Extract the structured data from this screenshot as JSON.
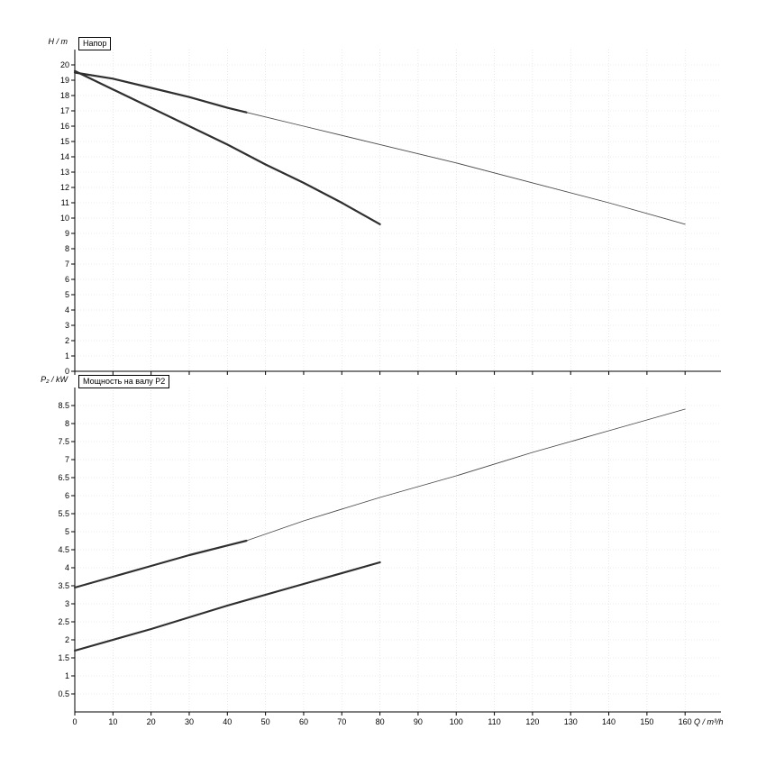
{
  "window": {
    "background": "#ffffff"
  },
  "x_axis": {
    "label": "Q / m³/h",
    "ticks": [
      0,
      10,
      20,
      30,
      40,
      50,
      60,
      70,
      80,
      90,
      100,
      110,
      120,
      130,
      140,
      150,
      160
    ]
  },
  "chart_data": [
    {
      "type": "line",
      "title": "Напор",
      "ylabel": "H / m",
      "xlabel": "Q / m³/h",
      "xlim": [
        0,
        169
      ],
      "ylim": [
        0,
        21
      ],
      "grid": true,
      "legend": "none",
      "yticks": [
        0,
        1,
        2,
        3,
        4,
        5,
        6,
        7,
        8,
        9,
        10,
        11,
        12,
        13,
        14,
        15,
        16,
        17,
        18,
        19,
        20
      ],
      "series": [
        {
          "name": "head-curve-pump1-duty",
          "stroke_width": 2.2,
          "color": "#2f2f2f",
          "points": [
            [
              0,
              19.5
            ],
            [
              10,
              19.1
            ],
            [
              20,
              18.5
            ],
            [
              30,
              17.9
            ],
            [
              40,
              17.2
            ],
            [
              45,
              16.9
            ]
          ]
        },
        {
          "name": "head-curve-pump1-extension",
          "stroke_width": 0.9,
          "color": "#4a4a4a",
          "points": [
            [
              45,
              16.9
            ],
            [
              60,
              16.0
            ],
            [
              80,
              14.8
            ],
            [
              100,
              13.6
            ],
            [
              120,
              12.3
            ],
            [
              140,
              11.0
            ],
            [
              160,
              9.6
            ]
          ]
        },
        {
          "name": "head-curve-pump2-duty",
          "stroke_width": 2.2,
          "color": "#2f2f2f",
          "points": [
            [
              0,
              19.6
            ],
            [
              10,
              18.4
            ],
            [
              20,
              17.2
            ],
            [
              30,
              16.0
            ],
            [
              40,
              14.8
            ],
            [
              50,
              13.5
            ],
            [
              60,
              12.3
            ],
            [
              70,
              11.0
            ],
            [
              80,
              9.6
            ]
          ]
        }
      ]
    },
    {
      "type": "line",
      "title": "Мощность на валу P2",
      "ylabel": "P₂ / kW",
      "xlabel": "Q / m³/h",
      "xlim": [
        0,
        169
      ],
      "ylim": [
        0,
        9
      ],
      "grid": true,
      "legend": "none",
      "yticks": [
        0.5,
        1,
        1.5,
        2,
        2.5,
        3,
        3.5,
        4,
        4.5,
        5,
        5.5,
        6,
        6.5,
        7,
        7.5,
        8,
        8.5
      ],
      "series": [
        {
          "name": "power-curve-pump1-duty",
          "stroke_width": 2.2,
          "color": "#2f2f2f",
          "points": [
            [
              0,
              3.45
            ],
            [
              10,
              3.75
            ],
            [
              20,
              4.05
            ],
            [
              30,
              4.35
            ],
            [
              45,
              4.75
            ]
          ]
        },
        {
          "name": "power-curve-pump1-extension",
          "stroke_width": 0.9,
          "color": "#4a4a4a",
          "points": [
            [
              45,
              4.75
            ],
            [
              60,
              5.3
            ],
            [
              80,
              5.95
            ],
            [
              100,
              6.55
            ],
            [
              120,
              7.2
            ],
            [
              140,
              7.8
            ],
            [
              160,
              8.4
            ]
          ]
        },
        {
          "name": "power-curve-pump2-duty",
          "stroke_width": 2.2,
          "color": "#2f2f2f",
          "points": [
            [
              0,
              1.7
            ],
            [
              20,
              2.3
            ],
            [
              40,
              2.95
            ],
            [
              60,
              3.55
            ],
            [
              80,
              4.15
            ]
          ]
        }
      ]
    }
  ]
}
